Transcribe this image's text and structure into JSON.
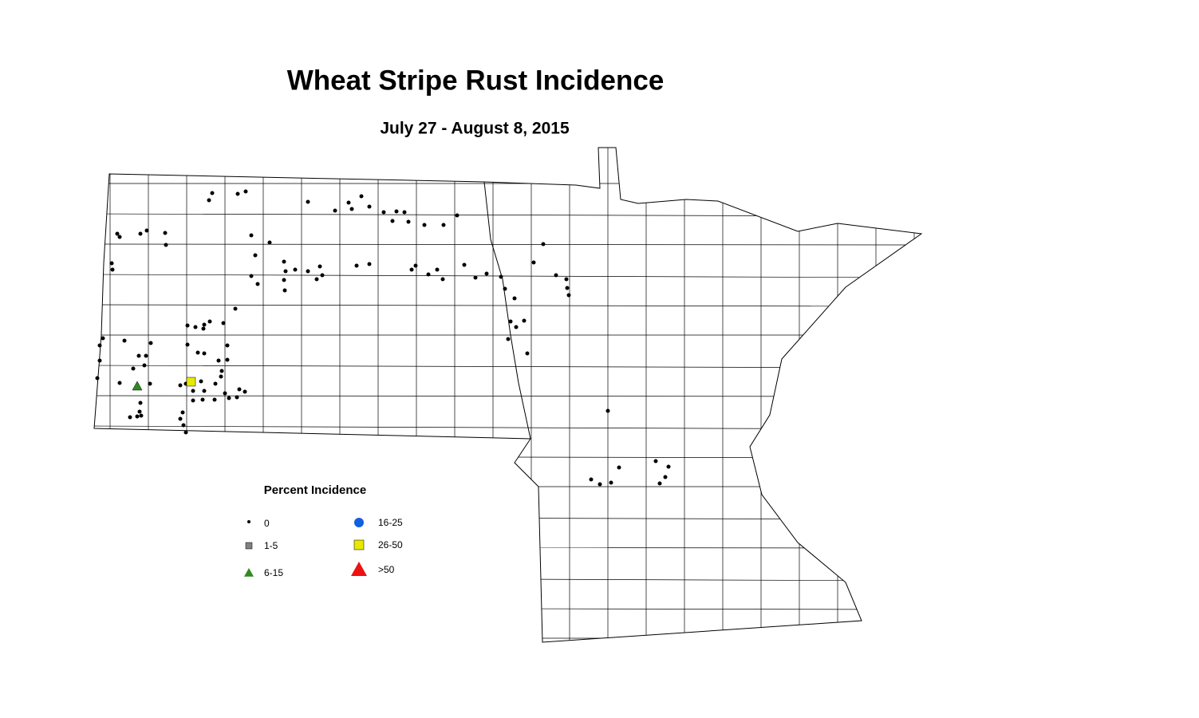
{
  "title": "Wheat Stripe Rust Incidence",
  "subtitle": "July 27 - August 8, 2015",
  "legend": {
    "title": "Percent Incidence",
    "items": [
      {
        "label": "0",
        "shape": "dot",
        "color": "#000000"
      },
      {
        "label": "1-5",
        "shape": "square",
        "color": "#808080"
      },
      {
        "label": "6-15",
        "shape": "triangle",
        "color": "#2e8b1e"
      },
      {
        "label": "16-25",
        "shape": "circle",
        "color": "#1060e0"
      },
      {
        "label": "26-50",
        "shape": "square",
        "color": "#e8e800"
      },
      {
        "label": ">50",
        "shape": "triangle",
        "color": "#ee1111"
      }
    ]
  }
}
